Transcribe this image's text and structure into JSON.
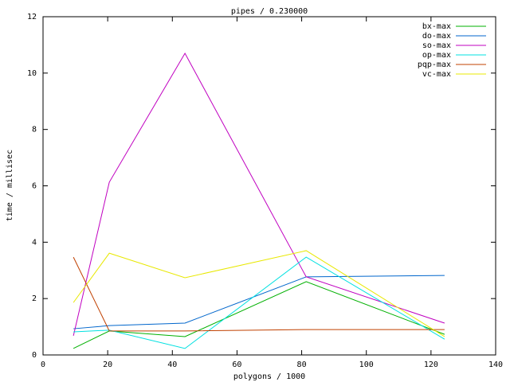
{
  "chart_data": {
    "type": "line",
    "title": "pipes / 0.230000",
    "x_label": "polygons / 1000",
    "y_label": "time / millisec",
    "x": [
      9.4,
      20.5,
      43.9,
      81.4,
      124.2
    ],
    "series": [
      {
        "name": "bx-max",
        "color": "#00b000",
        "values": [
          0.23,
          0.85,
          0.65,
          2.6,
          0.73
        ]
      },
      {
        "name": "do-max",
        "color": "#0066cc",
        "values": [
          0.93,
          1.04,
          1.13,
          2.77,
          2.82
        ]
      },
      {
        "name": "so-max",
        "color": "#c000c0",
        "values": [
          0.68,
          6.13,
          10.7,
          2.77,
          1.13
        ]
      },
      {
        "name": "op-max",
        "color": "#00e0e0",
        "values": [
          0.82,
          0.88,
          0.23,
          3.47,
          0.56
        ]
      },
      {
        "name": "pqp-max",
        "color": "#c04000",
        "values": [
          3.47,
          0.85,
          0.85,
          0.9,
          0.9
        ]
      },
      {
        "name": "vc-max",
        "color": "#e8e800",
        "values": [
          1.86,
          3.61,
          2.74,
          3.7,
          0.65
        ]
      }
    ],
    "xlim": [
      0,
      140
    ],
    "xticks": [
      0,
      20,
      40,
      60,
      80,
      100,
      120,
      140
    ],
    "ylim": [
      0,
      12
    ],
    "yticks": [
      0,
      2,
      4,
      6,
      8,
      10,
      12
    ],
    "legend": "top-right"
  }
}
